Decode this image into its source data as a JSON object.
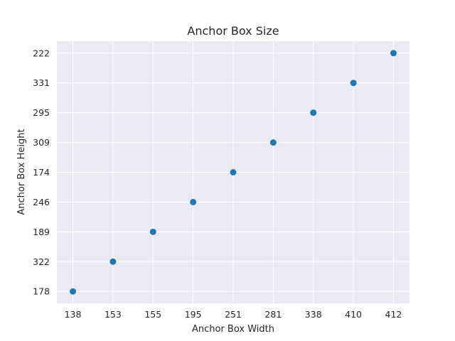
{
  "chart_data": {
    "type": "scatter",
    "title": "Anchor Box Size",
    "xlabel": "Anchor Box Width",
    "ylabel": "Anchor Box Height",
    "x_categories": [
      "138",
      "153",
      "155",
      "195",
      "251",
      "281",
      "338",
      "410",
      "412"
    ],
    "y_categories": [
      "178",
      "322",
      "189",
      "246",
      "174",
      "309",
      "295",
      "331",
      "222"
    ],
    "points": [
      {
        "x": "138",
        "y": "178"
      },
      {
        "x": "153",
        "y": "322"
      },
      {
        "x": "155",
        "y": "189"
      },
      {
        "x": "195",
        "y": "246"
      },
      {
        "x": "251",
        "y": "174"
      },
      {
        "x": "281",
        "y": "309"
      },
      {
        "x": "338",
        "y": "295"
      },
      {
        "x": "410",
        "y": "331"
      },
      {
        "x": "412",
        "y": "222"
      }
    ],
    "grid": true,
    "background_color": "#eaeaf2",
    "grid_color": "#ffffff",
    "marker_color": "#1f77b4"
  }
}
